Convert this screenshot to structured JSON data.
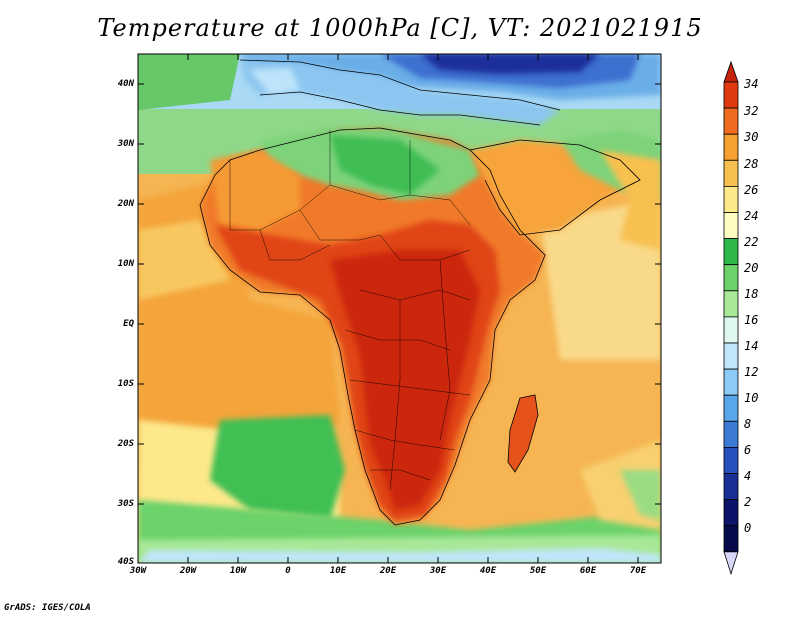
{
  "title": "Temperature at 1000hPa [C], VT: 2021021915",
  "credit": "GrADS: IGES/COLA",
  "lat_labels": [
    "40N",
    "30N",
    "20N",
    "10N",
    "EQ",
    "10S",
    "20S",
    "30S",
    "40S"
  ],
  "lon_labels": [
    "30W",
    "20W",
    "10W",
    "0",
    "10E",
    "20E",
    "30E",
    "40E",
    "50E",
    "60E",
    "70E"
  ],
  "colorbar": {
    "labels": [
      "34",
      "32",
      "30",
      "28",
      "26",
      "24",
      "22",
      "20",
      "18",
      "16",
      "14",
      "12",
      "10",
      "8",
      "6",
      "4",
      "2",
      "0"
    ],
    "colors": [
      "#c4220a",
      "#e03a10",
      "#f06a20",
      "#f5a030",
      "#f8c050",
      "#fde88a",
      "#fefcc0",
      "#2fb84a",
      "#6cd26a",
      "#a8e898",
      "#dff8f0",
      "#bfe6fa",
      "#8ccbf5",
      "#5aa6ea",
      "#3c7cd6",
      "#2850bc",
      "#1a2f96",
      "#0c146a",
      "#050a4a",
      "#d8d6f8"
    ]
  }
}
